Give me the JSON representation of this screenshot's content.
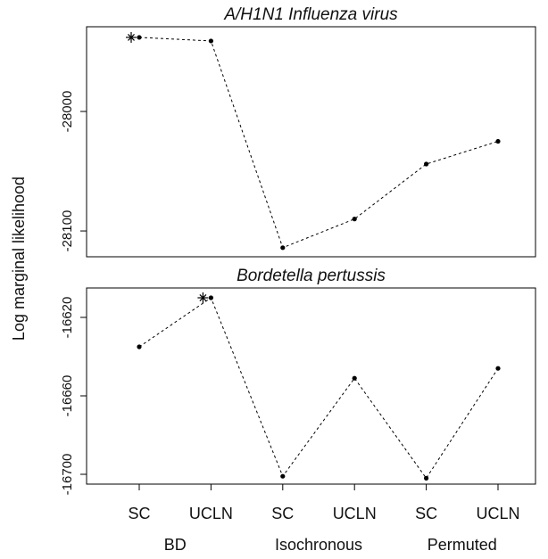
{
  "ylabel": "Log marginal likelihood",
  "chart_data": [
    {
      "type": "line",
      "title": "A/H1N1 Influenza virus",
      "values": [
        -27938,
        -27941,
        -28114,
        -28090,
        -28044,
        -28025
      ],
      "ylim": [
        -28121.6,
        -27929.1
      ],
      "yticks": [
        -28000,
        -28100
      ],
      "color": "#000000"
    },
    {
      "type": "line",
      "title": "Bordetella pertussis",
      "categories": [
        "SC",
        "UCLN",
        "SC",
        "UCLN",
        "SC",
        "UCLN"
      ],
      "groups": [
        "BD",
        "Isochronous",
        "Permuted"
      ],
      "values": [
        -16635,
        -16610,
        -16701,
        -16651,
        -16702,
        -16646
      ],
      "ylim": [
        -16705,
        -16605
      ],
      "yticks": [
        -16620,
        -16660,
        -16700
      ],
      "color": "#000000"
    }
  ]
}
